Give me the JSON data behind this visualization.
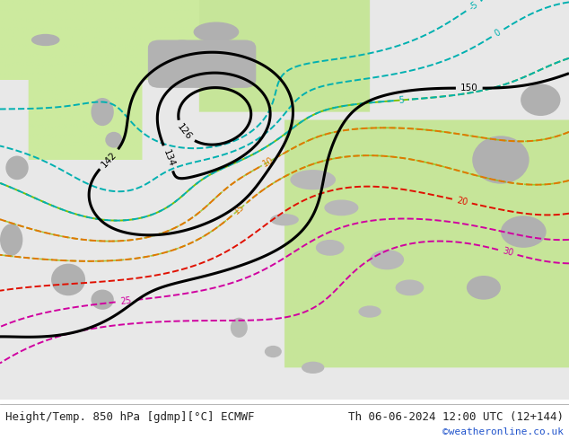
{
  "title_left": "Height/Temp. 850 hPa [gdmp][°C] ECMWF",
  "title_right": "Th 06-06-2024 12:00 UTC (12+144)",
  "watermark": "©weatheronline.co.uk",
  "bg_color": "#ffffff",
  "fig_width": 6.34,
  "fig_height": 4.9,
  "dpi": 100,
  "color_ocean_white": "#e8e8e8",
  "color_land_green": "#c8e8a0",
  "color_land_gray": "#b4b4b4",
  "color_height": "#000000",
  "color_temp_cyan": "#00b0b0",
  "color_temp_lime": "#80c000",
  "color_temp_orange": "#e07800",
  "color_temp_red": "#e01000",
  "color_temp_pink": "#d000a0",
  "text_color": "#222222",
  "watermark_color": "#2255cc",
  "font_size_bottom": 9,
  "font_size_watermark": 8,
  "bottom_bar_height": 0.092
}
